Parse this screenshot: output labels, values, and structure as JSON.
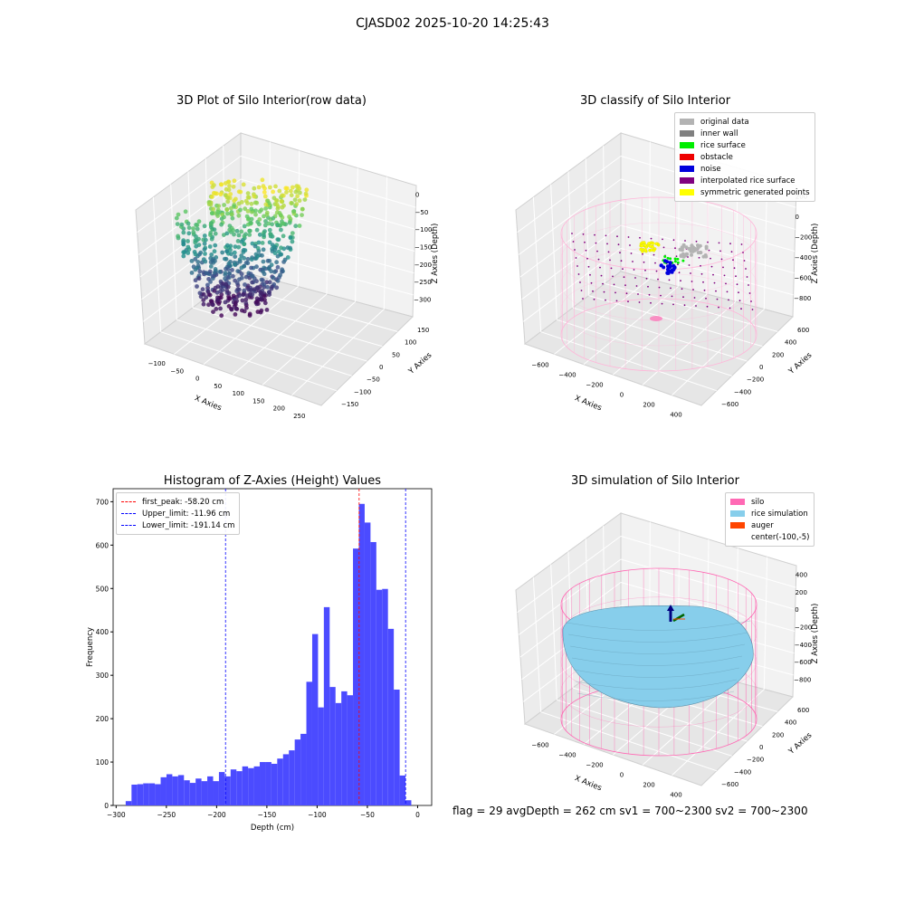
{
  "figure": {
    "suptitle": "CJASD02 2025-10-20 14:25:43",
    "footer": "flag = 29  avgDepth = 262 cm  sv1 = 700~2300  sv2 = 700~2300"
  },
  "chart_data": [
    {
      "type": "scatter",
      "title": "3D Plot of Silo Interior(row data)",
      "xlabel": "X Axies",
      "ylabel": "Y Axies",
      "zlabel": "Z Axies (Depth)",
      "x_ticks": [
        "−100",
        "−50",
        "0",
        "50",
        "100",
        "150",
        "200",
        "250"
      ],
      "y_ticks": [
        "−150",
        "−100",
        "−50",
        "0",
        "50",
        "100",
        "150"
      ],
      "z_ticks": [
        "0",
        "−50",
        "−100",
        "−150",
        "−200",
        "−250",
        "−300"
      ],
      "colormap": "viridis"
    },
    {
      "type": "scatter",
      "title": "3D classify of Silo Interior",
      "xlabel": "X Axies",
      "ylabel": "Y Axies",
      "zlabel": "Z Axies (Depth)",
      "x_ticks": [
        "−600",
        "−400",
        "−200",
        "0",
        "200",
        "400"
      ],
      "y_ticks": [
        "−600",
        "−400",
        "−200",
        "0",
        "200",
        "400",
        "600"
      ],
      "z_ticks": [
        "200",
        "0",
        "−200",
        "−400",
        "−600",
        "−800"
      ],
      "legend": [
        {
          "label": "original data",
          "color": "#b3b3b3"
        },
        {
          "label": "inner wall",
          "color": "#808080"
        },
        {
          "label": "rice surface",
          "color": "#00ee00"
        },
        {
          "label": "obstacle",
          "color": "#ee0000"
        },
        {
          "label": "noise",
          "color": "#0000dd"
        },
        {
          "label": "interpolated rice surface",
          "color": "#800080"
        },
        {
          "label": "symmetric generated points",
          "color": "#ffff00"
        }
      ]
    },
    {
      "type": "bar",
      "title": "Histogram of Z-Axies (Height) Values",
      "xlabel": "Depth (cm)",
      "ylabel": "Frequency",
      "xlim": [
        -303,
        14
      ],
      "ylim": [
        0,
        730
      ],
      "x_ticks": [
        -300,
        -250,
        -200,
        -150,
        -100,
        -50,
        0
      ],
      "x_tick_labels": [
        "−300",
        "−250",
        "−200",
        "−150",
        "−100",
        "−50",
        "0"
      ],
      "y_ticks": [
        0,
        100,
        200,
        300,
        400,
        500,
        600,
        700
      ],
      "y_tick_labels": [
        "0",
        "100",
        "200",
        "300",
        "400",
        "500",
        "600",
        "700"
      ],
      "bar_color": "#4b4bff",
      "bins_start": -290.5,
      "bin_width": 5.8,
      "values": [
        10,
        48,
        49,
        51,
        51,
        49,
        65,
        72,
        67,
        70,
        58,
        52,
        62,
        56,
        67,
        56,
        77,
        67,
        83,
        79,
        90,
        86,
        90,
        100,
        100,
        96,
        108,
        118,
        127,
        152,
        165,
        285,
        395,
        226,
        457,
        273,
        236,
        263,
        254,
        592,
        695,
        652,
        607,
        497,
        499,
        407,
        267,
        69,
        12
      ],
      "vlines": [
        {
          "label": "first_peak: -58.20 cm",
          "x": -58.2,
          "color": "#ff0000"
        },
        {
          "label": "Upper_limit: -11.96 cm",
          "x": -11.96,
          "color": "#0000ff"
        },
        {
          "label": "Lower_limit: -191.14 cm",
          "x": -191.14,
          "color": "#0000ff"
        }
      ]
    },
    {
      "type": "surface",
      "title": "3D simulation of Silo Interior",
      "xlabel": "X Axies",
      "ylabel": "Y Axies",
      "zlabel": "Z Axies (Depth)",
      "x_ticks": [
        "−600",
        "−400",
        "−200",
        "0",
        "200",
        "400"
      ],
      "y_ticks": [
        "−600",
        "−400",
        "−200",
        "0",
        "200",
        "400",
        "600"
      ],
      "z_ticks": [
        "400",
        "200",
        "0",
        "−200",
        "−400",
        "−600",
        "−800"
      ],
      "legend": [
        {
          "label": "silo",
          "color": "#ff69b4"
        },
        {
          "label": "rice simulation",
          "color": "#87ceeb"
        },
        {
          "label": "auger",
          "color": "#ff4500"
        },
        {
          "label": "center(-100,-5)",
          "color": ""
        }
      ]
    }
  ]
}
